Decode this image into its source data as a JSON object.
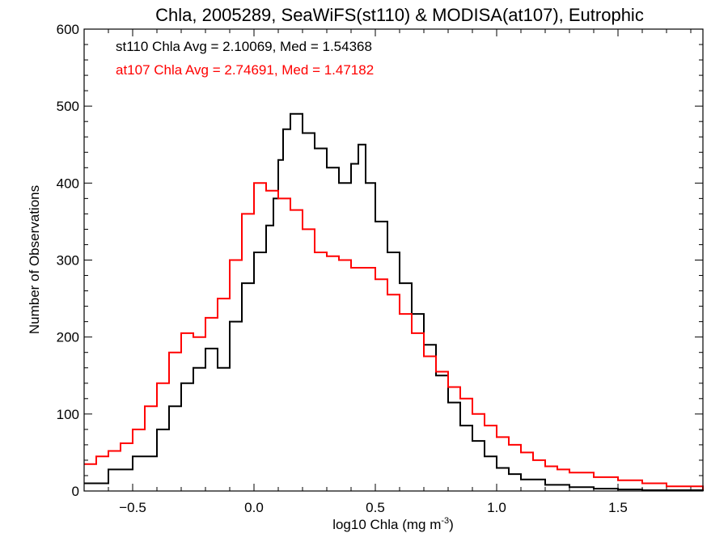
{
  "chart_data": {
    "type": "line",
    "title": "Chla, 2005289, SeaWiFS(st110) & MODISA(at107), Eutrophic",
    "xlabel_main": "log10 Chla (mg m",
    "xlabel_sup": "-3",
    "xlabel_end": ")",
    "ylabel": "Number of Observations",
    "xlim": [
      -0.7,
      1.85
    ],
    "ylim": [
      0,
      600
    ],
    "xticks": [
      -0.5,
      0.0,
      0.5,
      1.0,
      1.5
    ],
    "xtick_labels": [
      "−0.5",
      "0.0",
      "0.5",
      "1.0",
      "1.5"
    ],
    "yticks": [
      0,
      100,
      200,
      300,
      400,
      500,
      600
    ],
    "ytick_labels": [
      "0",
      "100",
      "200",
      "300",
      "400",
      "500",
      "600"
    ],
    "grid": false,
    "annotations": [
      {
        "text": "st110 Chla Avg = 2.10069, Med = 1.54368",
        "color": "#000000"
      },
      {
        "text": "at107 Chla Avg = 2.74691, Med = 1.47182",
        "color": "#ff0000"
      }
    ],
    "series": [
      {
        "color": "#000000",
        "step": true,
        "points": [
          [
            -0.7,
            10
          ],
          [
            -0.6,
            28
          ],
          [
            -0.5,
            45
          ],
          [
            -0.4,
            80
          ],
          [
            -0.35,
            110
          ],
          [
            -0.3,
            140
          ],
          [
            -0.25,
            160
          ],
          [
            -0.2,
            185
          ],
          [
            -0.15,
            160
          ],
          [
            -0.1,
            220
          ],
          [
            -0.05,
            270
          ],
          [
            0.0,
            310
          ],
          [
            0.05,
            345
          ],
          [
            0.08,
            380
          ],
          [
            0.1,
            430
          ],
          [
            0.12,
            470
          ],
          [
            0.15,
            490
          ],
          [
            0.2,
            465
          ],
          [
            0.25,
            445
          ],
          [
            0.3,
            420
          ],
          [
            0.35,
            400
          ],
          [
            0.4,
            425
          ],
          [
            0.43,
            450
          ],
          [
            0.46,
            400
          ],
          [
            0.5,
            350
          ],
          [
            0.55,
            310
          ],
          [
            0.6,
            270
          ],
          [
            0.65,
            230
          ],
          [
            0.7,
            190
          ],
          [
            0.75,
            150
          ],
          [
            0.8,
            115
          ],
          [
            0.85,
            85
          ],
          [
            0.9,
            65
          ],
          [
            0.95,
            45
          ],
          [
            1.0,
            30
          ],
          [
            1.05,
            22
          ],
          [
            1.1,
            15
          ],
          [
            1.2,
            8
          ],
          [
            1.3,
            5
          ],
          [
            1.4,
            3
          ],
          [
            1.5,
            2
          ],
          [
            1.6,
            1
          ],
          [
            1.85,
            0
          ]
        ]
      },
      {
        "color": "#ff0000",
        "step": true,
        "points": [
          [
            -0.7,
            35
          ],
          [
            -0.65,
            45
          ],
          [
            -0.6,
            52
          ],
          [
            -0.55,
            62
          ],
          [
            -0.5,
            80
          ],
          [
            -0.45,
            110
          ],
          [
            -0.4,
            140
          ],
          [
            -0.35,
            180
          ],
          [
            -0.3,
            205
          ],
          [
            -0.25,
            200
          ],
          [
            -0.2,
            225
          ],
          [
            -0.15,
            250
          ],
          [
            -0.1,
            300
          ],
          [
            -0.05,
            360
          ],
          [
            0.0,
            400
          ],
          [
            0.05,
            390
          ],
          [
            0.1,
            380
          ],
          [
            0.15,
            365
          ],
          [
            0.2,
            340
          ],
          [
            0.25,
            310
          ],
          [
            0.3,
            305
          ],
          [
            0.35,
            300
          ],
          [
            0.4,
            290
          ],
          [
            0.45,
            290
          ],
          [
            0.5,
            275
          ],
          [
            0.55,
            255
          ],
          [
            0.6,
            230
          ],
          [
            0.65,
            205
          ],
          [
            0.7,
            175
          ],
          [
            0.75,
            155
          ],
          [
            0.8,
            135
          ],
          [
            0.85,
            120
          ],
          [
            0.9,
            100
          ],
          [
            0.95,
            85
          ],
          [
            1.0,
            70
          ],
          [
            1.05,
            60
          ],
          [
            1.1,
            50
          ],
          [
            1.15,
            40
          ],
          [
            1.2,
            32
          ],
          [
            1.25,
            28
          ],
          [
            1.3,
            24
          ],
          [
            1.4,
            18
          ],
          [
            1.5,
            14
          ],
          [
            1.6,
            10
          ],
          [
            1.7,
            6
          ],
          [
            1.85,
            2
          ]
        ]
      }
    ]
  }
}
